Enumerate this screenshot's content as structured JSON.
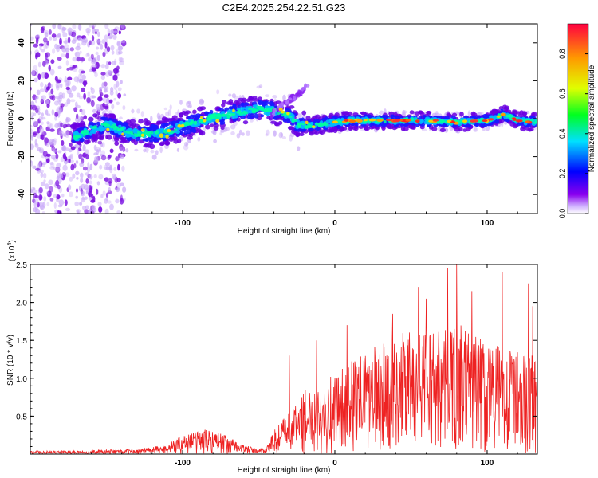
{
  "title": "C2E4.2025.254.22.51.G23",
  "chart_data": [
    {
      "type": "heatmap",
      "title": "C2E4.2025.254.22.51.G23",
      "xlabel": "Height of straight line (km)",
      "ylabel": "Frequency (Hz)",
      "xlim": [
        -200,
        133
      ],
      "ylim": [
        -50,
        50
      ],
      "xticks": [
        -100,
        0,
        100
      ],
      "yticks": [
        -40,
        -20,
        0,
        20,
        40
      ],
      "ridge": {
        "x": [
          -172,
          -160,
          -150,
          -140,
          -130,
          -120,
          -110,
          -100,
          -90,
          -80,
          -70,
          -60,
          -50,
          -40,
          -30,
          -25,
          -20,
          -10,
          0,
          10,
          20,
          40,
          60,
          80,
          100,
          110,
          115,
          120,
          133
        ],
        "y": [
          -10,
          -6,
          -3,
          -6,
          -8,
          -8,
          -7,
          -4,
          -2,
          1,
          2,
          4,
          5,
          4,
          2,
          -3,
          -4,
          -3,
          -2,
          -1,
          -1,
          -1,
          -1,
          -2,
          -1,
          2,
          1,
          -1,
          -2
        ]
      },
      "colorbar": {
        "label": "Normalized spectral amplitude",
        "ticks": [
          "0.0",
          "0.2",
          "0.4",
          "0.6",
          "0.8"
        ],
        "range": [
          0,
          0.95
        ]
      }
    },
    {
      "type": "line",
      "xlabel": "Height of straight line (km)",
      "ylabel": "SNR (10 * v/v)",
      "scale_label": "(x10",
      "scale_exp": "4",
      "scale_close": ")",
      "xlim": [
        -200,
        133
      ],
      "ylim": [
        0,
        2.5
      ],
      "xticks": [
        -100,
        0,
        100
      ],
      "yticks": [
        "0.5",
        "1.0",
        "1.5",
        "2.0",
        "2.5"
      ],
      "color": "#ee2222",
      "envelope": {
        "x": [
          -200,
          -160,
          -130,
          -110,
          -100,
          -90,
          -80,
          -70,
          -60,
          -50,
          -45,
          -40,
          -30,
          -20,
          -10,
          0,
          10,
          20,
          30,
          40,
          50,
          60,
          70,
          80,
          90,
          100,
          110,
          120,
          133
        ],
        "y": [
          0.04,
          0.05,
          0.06,
          0.12,
          0.25,
          0.3,
          0.32,
          0.22,
          0.12,
          0.06,
          0.1,
          0.3,
          0.55,
          0.8,
          0.9,
          1.0,
          1.15,
          1.3,
          1.4,
          1.5,
          1.55,
          1.6,
          1.65,
          1.65,
          1.55,
          1.45,
          1.35,
          1.3,
          1.25
        ]
      },
      "peaks": [
        {
          "x": -30,
          "y": 1.3
        },
        {
          "x": -12,
          "y": 1.5
        },
        {
          "x": 8,
          "y": 1.7
        },
        {
          "x": 38,
          "y": 1.85
        },
        {
          "x": 55,
          "y": 2.2
        },
        {
          "x": 60,
          "y": 2.05
        },
        {
          "x": 74,
          "y": 2.45
        },
        {
          "x": 80,
          "y": 2.5
        },
        {
          "x": 90,
          "y": 2.15
        },
        {
          "x": 110,
          "y": 2.4
        },
        {
          "x": 127,
          "y": 2.25
        },
        {
          "x": 130,
          "y": 1.95
        }
      ]
    }
  ]
}
